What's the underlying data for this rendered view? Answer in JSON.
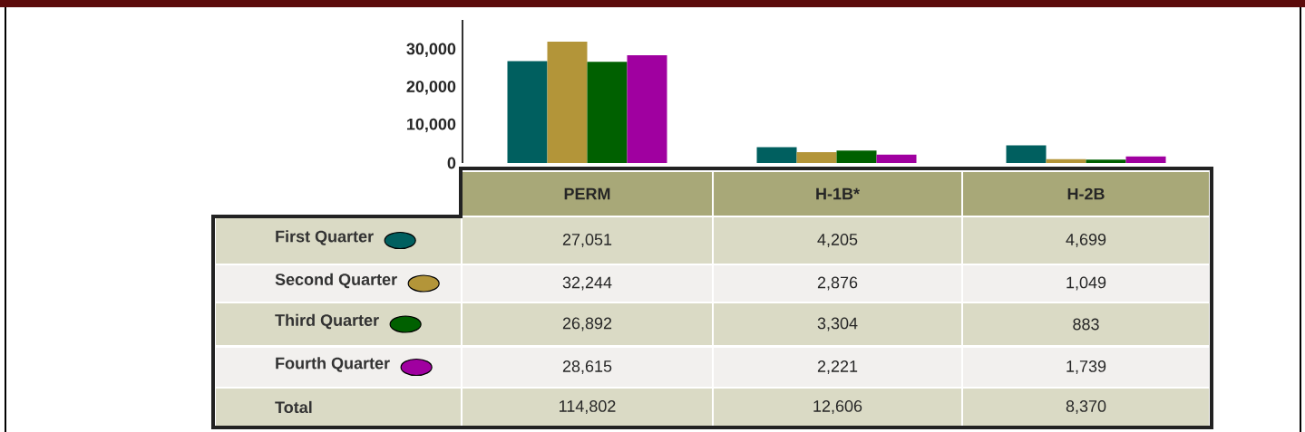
{
  "chart_data": {
    "type": "bar",
    "categories": [
      "PERM",
      "H-1B*",
      "H-2B"
    ],
    "series": [
      {
        "name": "First Quarter",
        "color": "#005f5f",
        "values": [
          27051,
          4205,
          4699
        ],
        "value_labels": [
          "27,051",
          "4,205",
          "4,699"
        ]
      },
      {
        "name": "Second Quarter",
        "color": "#b39539",
        "values": [
          32244,
          2876,
          1049
        ],
        "value_labels": [
          "32,244",
          "2,876",
          "1,049"
        ]
      },
      {
        "name": "Third Quarter",
        "color": "#006000",
        "values": [
          26892,
          3304,
          883
        ],
        "value_labels": [
          "26,892",
          "3,304",
          "883"
        ]
      },
      {
        "name": "Fourth Quarter",
        "color": "#a000a0",
        "values": [
          28615,
          2221,
          1739
        ],
        "value_labels": [
          "28,615",
          "2,221",
          "1,739"
        ]
      }
    ],
    "annotations": [
      "Total",
      "114,802",
      "12,606",
      "8,370"
    ],
    "ylim": [
      0,
      38000
    ],
    "yticks": [
      {
        "value": 0,
        "label": "0"
      },
      {
        "value": 10000,
        "label": "10,000"
      },
      {
        "value": 20000,
        "label": "20,000"
      },
      {
        "value": 30000,
        "label": "30,000"
      }
    ],
    "legend": "bottom"
  }
}
